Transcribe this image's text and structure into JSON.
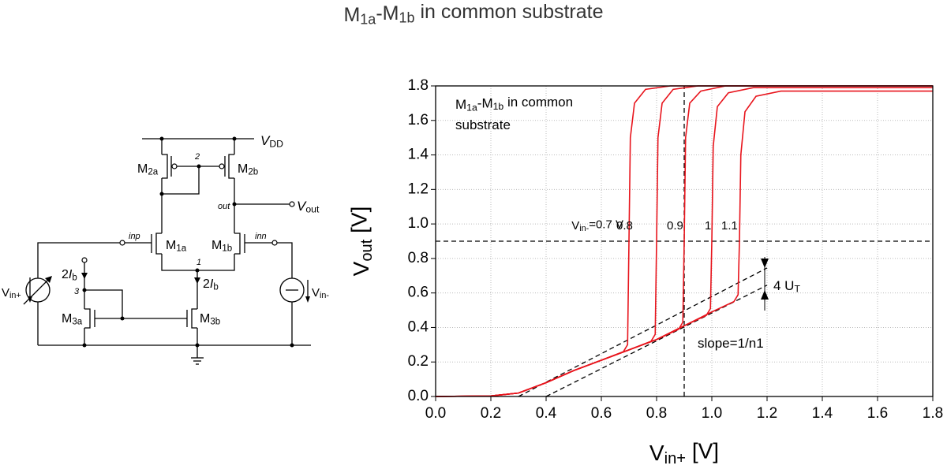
{
  "title": [
    {
      "t": "M"
    },
    {
      "t": "1a",
      "sub": true
    },
    {
      "t": "-M"
    },
    {
      "t": "1b",
      "sub": true
    },
    {
      "t": " in common substrate"
    }
  ],
  "circuit": {
    "labels": [
      [
        {
          "t": "V",
          "it": true
        },
        {
          "t": "DD",
          "sub": true
        }
      ],
      [
        {
          "t": "M"
        },
        {
          "t": "2a",
          "sub": true
        }
      ],
      [
        {
          "t": "M"
        },
        {
          "t": "2b",
          "sub": true
        }
      ],
      [
        {
          "t": "2",
          "it": true
        }
      ],
      [
        {
          "t": "out",
          "it": true
        }
      ],
      [
        {
          "t": "V",
          "it": true
        },
        {
          "t": "out",
          "sub": true
        }
      ],
      [
        {
          "t": "inp",
          "it": true
        }
      ],
      [
        {
          "t": "inn",
          "it": true
        }
      ],
      [
        {
          "t": "M"
        },
        {
          "t": "1a",
          "sub": true
        }
      ],
      [
        {
          "t": "M"
        },
        {
          "t": "1b",
          "sub": true
        }
      ],
      [
        {
          "t": "1",
          "it": true
        }
      ],
      [
        {
          "t": "2"
        },
        {
          "t": "I",
          "it": true
        },
        {
          "t": "b",
          "sub": true
        }
      ],
      [
        {
          "t": "2"
        },
        {
          "t": "I",
          "it": true
        },
        {
          "t": "b",
          "sub": true
        }
      ],
      [
        {
          "t": "3",
          "it": true
        }
      ],
      [
        {
          "t": "M"
        },
        {
          "t": "3a",
          "sub": true
        }
      ],
      [
        {
          "t": "M"
        },
        {
          "t": "3b",
          "sub": true
        }
      ],
      [
        {
          "t": "V"
        },
        {
          "t": "in+",
          "sub": true
        }
      ],
      [
        {
          "t": "V"
        },
        {
          "t": "in-",
          "sub": true
        }
      ]
    ]
  },
  "chart_data": {
    "type": "line",
    "xlabel": [
      {
        "t": "V"
      },
      {
        "t": "in+",
        "sub": true
      },
      {
        "t": " [V]"
      }
    ],
    "ylabel": [
      {
        "t": "V"
      },
      {
        "t": "out",
        "sub": true
      },
      {
        "t": " [V]"
      }
    ],
    "xlim": [
      0,
      1.8
    ],
    "ylim": [
      0,
      1.8
    ],
    "xticks": [
      {
        "value": 0,
        "label": "0.0"
      },
      0.2,
      0.4,
      0.6,
      0.8,
      {
        "value": 1,
        "label": "1.0"
      },
      1.2,
      1.4,
      1.6,
      1.8
    ],
    "yticks": [
      {
        "value": 0,
        "label": "0.0"
      },
      0.2,
      0.4,
      0.6,
      0.8,
      {
        "value": 1,
        "label": "1.0"
      },
      1.2,
      1.4,
      1.6,
      1.8
    ],
    "grid": true,
    "series": [
      {
        "name": [
          {
            "t": "V"
          },
          {
            "t": "in-",
            "sub": true
          },
          {
            "t": "=0.7 V"
          }
        ],
        "color": "#e8141c",
        "x": [
          0,
          0.2,
          0.3,
          0.4,
          0.5,
          0.6,
          0.68,
          0.695,
          0.7,
          0.705,
          0.72,
          0.76,
          0.85,
          1.8
        ],
        "values": [
          0,
          0.003,
          0.02,
          0.08,
          0.15,
          0.21,
          0.26,
          0.3,
          0.9,
          1.5,
          1.7,
          1.78,
          1.8,
          1.8
        ]
      },
      {
        "name": [
          {
            "t": "0.8"
          }
        ],
        "color": "#e8141c",
        "x": [
          0,
          0.2,
          0.3,
          0.4,
          0.5,
          0.6,
          0.7,
          0.78,
          0.795,
          0.8,
          0.805,
          0.82,
          0.86,
          0.95,
          1.8
        ],
        "values": [
          0,
          0.003,
          0.02,
          0.08,
          0.15,
          0.21,
          0.27,
          0.32,
          0.36,
          0.9,
          1.5,
          1.7,
          1.78,
          1.8,
          1.8
        ]
      },
      {
        "name": [
          {
            "t": "0.9"
          }
        ],
        "color": "#e8141c",
        "x": [
          0,
          0.2,
          0.3,
          0.4,
          0.5,
          0.6,
          0.7,
          0.8,
          0.88,
          0.895,
          0.9,
          0.905,
          0.92,
          0.96,
          1.05,
          1.8
        ],
        "values": [
          0,
          0.003,
          0.02,
          0.08,
          0.15,
          0.21,
          0.27,
          0.33,
          0.39,
          0.43,
          0.9,
          1.5,
          1.7,
          1.77,
          1.8,
          1.8
        ]
      },
      {
        "name": [
          {
            "t": "1"
          }
        ],
        "color": "#e8141c",
        "x": [
          0,
          0.2,
          0.3,
          0.4,
          0.5,
          0.6,
          0.7,
          0.8,
          0.9,
          0.98,
          0.995,
          1,
          1.005,
          1.02,
          1.06,
          1.15,
          1.8
        ],
        "values": [
          0,
          0.003,
          0.02,
          0.08,
          0.15,
          0.21,
          0.27,
          0.33,
          0.41,
          0.47,
          0.51,
          0.9,
          1.45,
          1.68,
          1.76,
          1.79,
          1.79
        ]
      },
      {
        "name": [
          {
            "t": "1.1"
          }
        ],
        "color": "#e8141c",
        "x": [
          0,
          0.2,
          0.3,
          0.4,
          0.5,
          0.6,
          0.7,
          0.8,
          0.9,
          1,
          1.08,
          1.095,
          1.1,
          1.105,
          1.12,
          1.16,
          1.25,
          1.8
        ],
        "values": [
          0,
          0.003,
          0.02,
          0.08,
          0.15,
          0.21,
          0.27,
          0.33,
          0.41,
          0.49,
          0.55,
          0.59,
          0.9,
          1.4,
          1.65,
          1.74,
          1.77,
          1.77
        ]
      }
    ],
    "reference_lines": [
      {
        "x": [
          0.9,
          0.9
        ],
        "y": [
          0,
          1.8
        ]
      },
      {
        "x": [
          0,
          1.8
        ],
        "y": [
          0.9,
          0.9
        ]
      },
      {
        "x": [
          0.3,
          1.2
        ],
        "y": [
          0,
          0.745
        ]
      },
      {
        "x": [
          0.4,
          1.2
        ],
        "y": [
          0,
          0.645
        ]
      }
    ],
    "annotations": [
      [
        {
          "t": "M"
        },
        {
          "t": "1a",
          "sub": true
        },
        {
          "t": "-M"
        },
        {
          "t": "1b",
          "sub": true
        },
        {
          "t": " in common"
        }
      ],
      [
        {
          "t": "substrate"
        }
      ],
      [
        {
          "t": "4 U"
        },
        {
          "t": "T",
          "sub": true
        }
      ],
      [
        {
          "t": "slope=1/n1"
        }
      ]
    ]
  }
}
